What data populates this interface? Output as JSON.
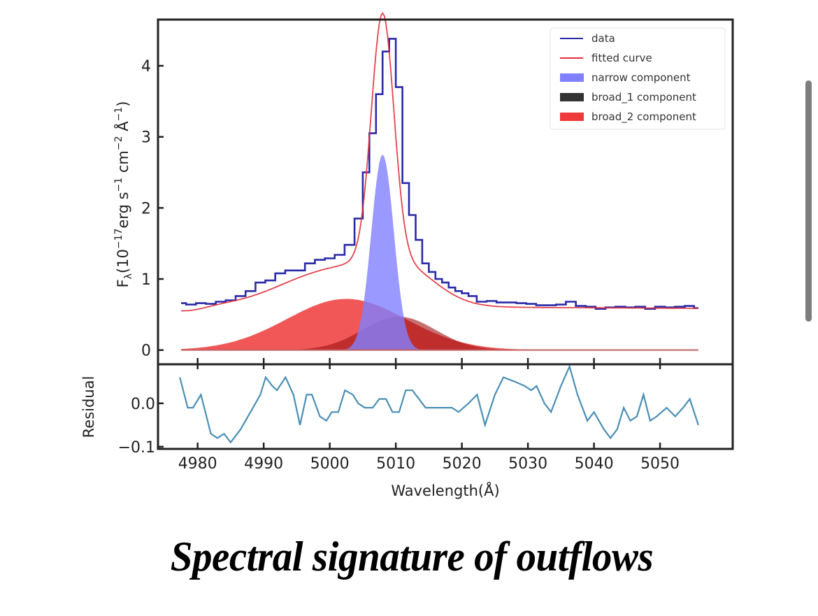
{
  "caption": "Spectral signature of outflows",
  "scrollbar": {
    "label": "vertical-scrollbar"
  },
  "colors": {
    "data": "#2a2aa8",
    "fitted": "#e0303a",
    "narrow": "#8080ff",
    "broad_1": "#333333",
    "broad_2": "#ee3a3a",
    "residual": "#4a8fb5",
    "axis": "#222222"
  },
  "chart_data": [
    {
      "type": "line",
      "panel": "main",
      "xlabel": "Wavelength(Å)",
      "ylabel_parts": {
        "f": "F",
        "sub": "λ",
        "pre": "(10",
        "e1": "−17",
        "erg": "erg s",
        "e2": "−1",
        "cm": " cm",
        "e3": "−2",
        "ang": " Å",
        "e4": "−1",
        "post": ")"
      },
      "xlim": [
        4974,
        5061
      ],
      "ylim": [
        -0.2,
        4.65
      ],
      "xticks": [
        4980,
        4990,
        5000,
        5010,
        5020,
        5030,
        5040,
        5050
      ],
      "yticks": [
        0,
        1,
        2,
        3,
        4
      ],
      "ytick_labels": [
        "0",
        "1",
        "2",
        "3",
        "4"
      ],
      "legend_position": "top-right",
      "legend": [
        {
          "label": "data",
          "kind": "line",
          "color_key": "data"
        },
        {
          "label": "fitted curve",
          "kind": "line",
          "color_key": "fitted"
        },
        {
          "label": "narrow component",
          "kind": "patch",
          "color_key": "narrow"
        },
        {
          "label": "broad_1 component",
          "kind": "patch",
          "color_key": "broad_1"
        },
        {
          "label": "broad_2 component",
          "kind": "patch",
          "color_key": "broad_2"
        }
      ],
      "series": [
        {
          "name": "data",
          "style": "step",
          "x": [
            4977.5,
            4979,
            4980.5,
            4982,
            4983.5,
            4985,
            4986.5,
            4988,
            4989.5,
            4991,
            4992.5,
            4994,
            4995.5,
            4997,
            4998.5,
            5000,
            5001.5,
            5003,
            5004.5,
            5005.5,
            5006.5,
            5007.5,
            5008.5,
            5009.5,
            5010.5,
            5011.5,
            5012.5,
            5013.5,
            5014.5,
            5015.5,
            5016.5,
            5017.5,
            5018.5,
            5019.5,
            5020.5,
            5021.5,
            5023,
            5024.5,
            5026,
            5027.5,
            5029,
            5030.5,
            5032,
            5033.5,
            5035,
            5036.5,
            5038,
            5039.5,
            5041,
            5042.5,
            5044,
            5045.5,
            5047,
            5048.5,
            5050,
            5051.5,
            5053,
            5054.5,
            5055.8
          ],
          "y": [
            0.66,
            0.64,
            0.66,
            0.65,
            0.68,
            0.7,
            0.76,
            0.83,
            0.95,
            0.98,
            1.08,
            1.12,
            1.12,
            1.22,
            1.27,
            1.29,
            1.34,
            1.48,
            1.85,
            2.5,
            3.05,
            3.6,
            4.2,
            4.38,
            3.7,
            2.35,
            1.9,
            1.55,
            1.22,
            1.1,
            1.0,
            0.95,
            0.88,
            0.83,
            0.8,
            0.76,
            0.68,
            0.69,
            0.67,
            0.67,
            0.66,
            0.65,
            0.63,
            0.63,
            0.64,
            0.68,
            0.62,
            0.61,
            0.58,
            0.6,
            0.61,
            0.6,
            0.61,
            0.58,
            0.61,
            0.6,
            0.61,
            0.62,
            0.59
          ]
        },
        {
          "name": "fitted curve",
          "style": "line",
          "model": "narrow + broad_1 + broad_2 + continuum"
        },
        {
          "name": "narrow component",
          "style": "gaussian-fill",
          "center": 5008.0,
          "amplitude": 2.75,
          "sigma": 1.7
        },
        {
          "name": "broad_1 component",
          "style": "gaussian-fill",
          "center": 5010.5,
          "amplitude": 0.47,
          "sigma": 5.5
        },
        {
          "name": "broad_2 component",
          "style": "gaussian-fill",
          "center": 5002.5,
          "amplitude": 0.72,
          "sigma": 9.0
        },
        {
          "name": "continuum",
          "style": "hidden",
          "value": 0.6,
          "slope_per_angstrom": -0.0005
        }
      ]
    },
    {
      "type": "line",
      "panel": "residual",
      "ylabel": "Residual",
      "xlabel": "Wavelength(Å)",
      "xlim": [
        4974,
        5061
      ],
      "ylim": [
        -0.105,
        0.09
      ],
      "yticks": [
        0.0,
        -0.1
      ],
      "ytick_labels": [
        "0.0",
        "−0.1"
      ],
      "xticks": [
        4980,
        4990,
        5000,
        5010,
        5020,
        5030,
        5040,
        5050
      ],
      "xtick_labels": [
        "4980",
        "4990",
        "5000",
        "5010",
        "5020",
        "5030",
        "5040",
        "5050"
      ],
      "series": [
        {
          "name": "residual",
          "x": [
            4977.3,
            4978.5,
            4979.3,
            4980.5,
            4982,
            4983,
            4984,
            4985,
            4986.5,
            4988,
            4989.5,
            4990.3,
            4991.3,
            4992,
            4993.3,
            4994.5,
            4995.5,
            4996.5,
            4997.3,
            4998.5,
            4999.5,
            5000.3,
            5001.3,
            5002.3,
            5003.5,
            5004.3,
            5005.3,
            5006.5,
            5007.5,
            5008.5,
            5009.5,
            5010.5,
            5011.5,
            5012.5,
            5013.5,
            5014.5,
            5016,
            5017,
            5018.5,
            5019.5,
            5021,
            5022.3,
            5023.5,
            5025,
            5026.3,
            5028,
            5029.5,
            5030.5,
            5031.3,
            5032.5,
            5033.5,
            5035,
            5036.3,
            5037.5,
            5039,
            5040,
            5041.5,
            5042.5,
            5043.5,
            5044.5,
            5045.5,
            5046.5,
            5047.5,
            5048.5,
            5049.5,
            5051,
            5052.3,
            5053.5,
            5054.5,
            5055.8
          ],
          "y": [
            0.06,
            -0.01,
            -0.01,
            0.02,
            -0.07,
            -0.08,
            -0.07,
            -0.09,
            -0.06,
            -0.02,
            0.02,
            0.06,
            0.04,
            0.03,
            0.06,
            0.02,
            -0.05,
            0.02,
            0.02,
            -0.03,
            -0.04,
            -0.02,
            -0.02,
            0.03,
            0.02,
            0.0,
            -0.01,
            -0.01,
            0.01,
            0.01,
            -0.02,
            -0.02,
            0.03,
            0.03,
            0.01,
            -0.01,
            -0.01,
            -0.01,
            -0.01,
            -0.02,
            0.0,
            0.02,
            -0.05,
            0.02,
            0.06,
            0.05,
            0.04,
            0.03,
            0.04,
            0.0,
            -0.02,
            0.04,
            0.085,
            0.02,
            -0.04,
            -0.02,
            -0.06,
            -0.08,
            -0.06,
            -0.01,
            -0.04,
            -0.03,
            0.02,
            -0.04,
            -0.03,
            -0.01,
            -0.03,
            -0.01,
            0.01,
            -0.05
          ]
        }
      ]
    }
  ]
}
